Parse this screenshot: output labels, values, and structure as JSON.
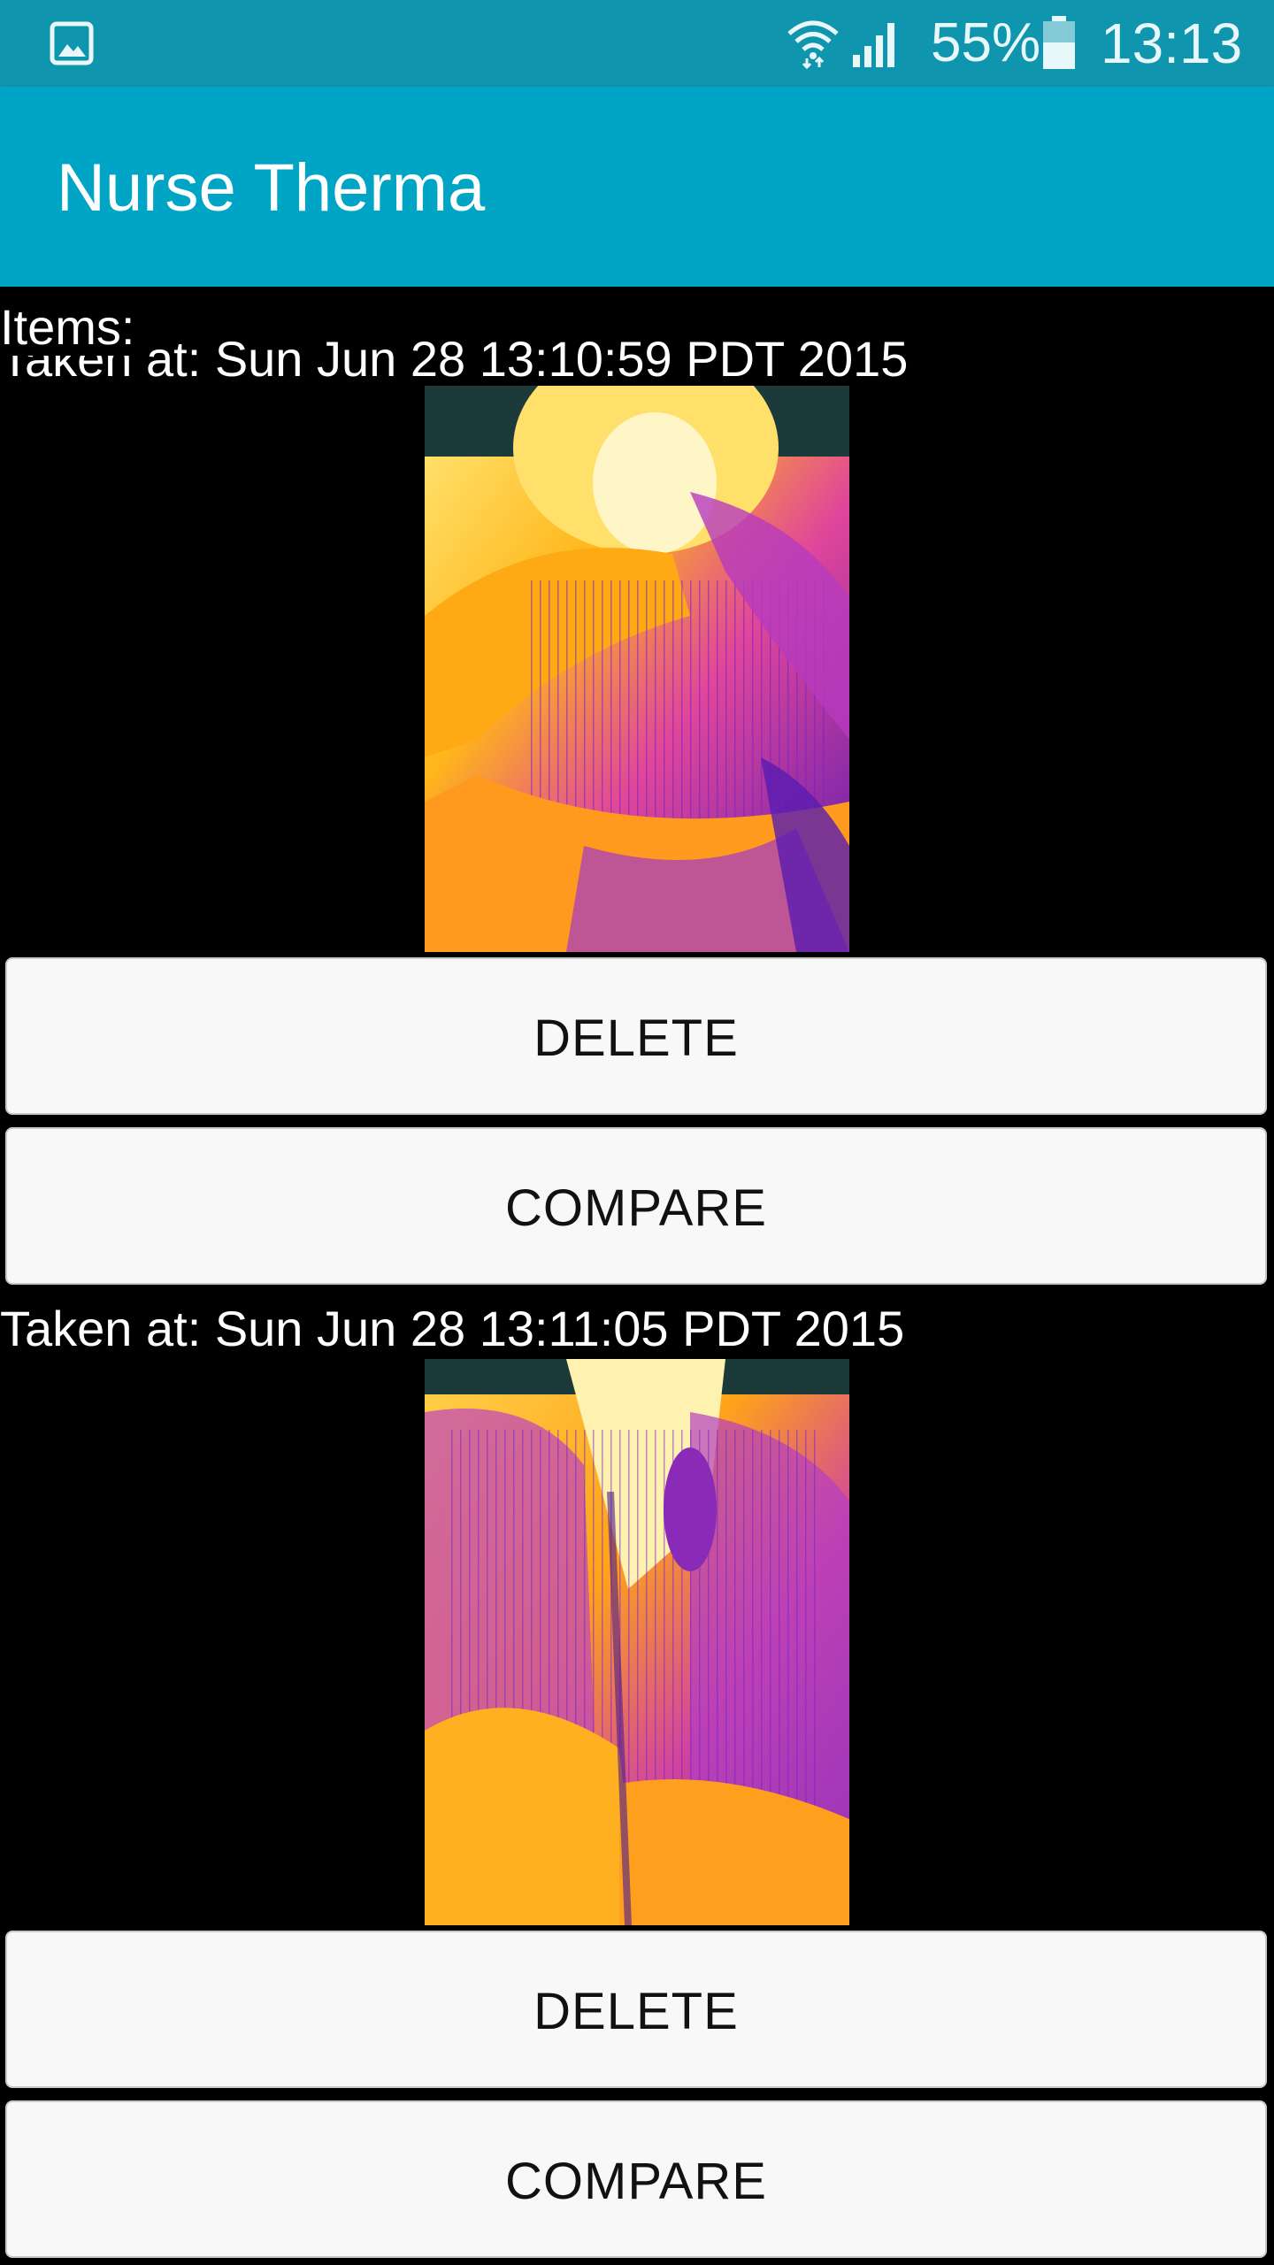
{
  "status_bar": {
    "battery_percent": "55%",
    "time": "13:13",
    "icons": [
      "gallery-icon",
      "wifi-icon",
      "signal-icon",
      "battery-icon"
    ],
    "background_color": "#0f95ae"
  },
  "app_bar": {
    "title": "Nurse Therma",
    "background_color": "#00a5c5"
  },
  "content": {
    "items_label": "Items:",
    "items": [
      {
        "taken_at": "Taken at: Sun Jun 28 13:10:59 PDT 2015",
        "image_icon": "thermal-image",
        "delete_label": "DELETE",
        "compare_label": "COMPARE"
      },
      {
        "taken_at": "Taken at: Sun Jun 28 13:11:05 PDT 2015",
        "image_icon": "thermal-image",
        "delete_label": "DELETE",
        "compare_label": "COMPARE"
      }
    ]
  }
}
